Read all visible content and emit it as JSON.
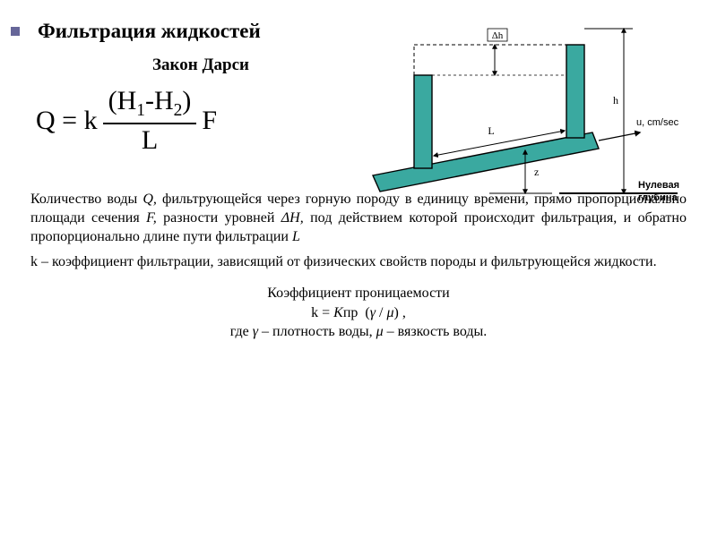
{
  "title": "Фильтрация жидкостей",
  "subtitle": "Закон Дарси",
  "formula": {
    "lhs": "Q = k",
    "num_left": "(H",
    "num_sub1": "1",
    "num_mid": "-H",
    "num_sub2": "2",
    "num_right": ")",
    "den": "L",
    "trail": "F"
  },
  "diagram": {
    "type": "physics-diagram",
    "fill_color": "#3aa9a0",
    "stroke_color": "#000000",
    "bg": "#ffffff",
    "arrow_color": "#000000",
    "text_color": "#000000",
    "fontsize": 12,
    "labels": {
      "dh": "Δh",
      "h": "h",
      "L": "L",
      "z": "z",
      "u": "u, cm/sec",
      "zero": "Нулевая",
      "depth": "глубина"
    }
  },
  "para1_html": "Количество воды <i>Q,</i> фильтрующейся через горную породу в единицу времени, прямо пропорционально площади сечения <i>F,</i> разности уровней <i>ΔH,</i> под действием которой происходит фильтрация, и обратно пропорционально длине пути фильтрации <i>L</i>",
  "para2": "k – коэффициент фильтрации, зависящий от физических свойств породы и фильтрующейся жидкости.",
  "footer": {
    "line1": "Коэффициент проницаемости",
    "line2_html": "k = <i>K</i>пр &nbsp;(<i>γ</i> / <i>μ</i>) ,",
    "line3_html": "где <i>γ</i> – плотность воды, <i>μ</i> – вязкость воды."
  }
}
